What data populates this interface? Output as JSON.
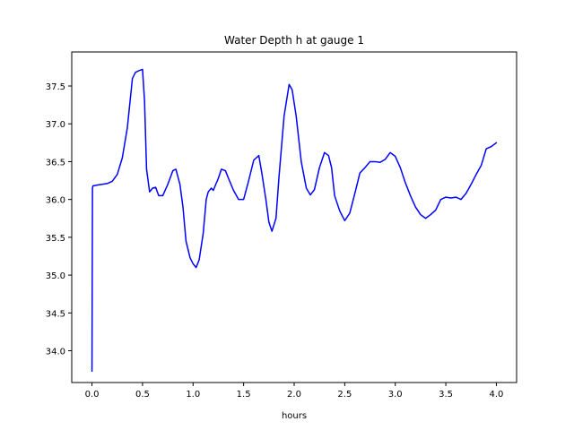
{
  "chart_data": {
    "type": "line",
    "title": "Water Depth h at gauge 1",
    "xlabel": "hours",
    "ylabel": "",
    "xlim": [
      -0.2,
      4.2
    ],
    "ylim": [
      33.58,
      37.95
    ],
    "xticks": [
      0.0,
      0.5,
      1.0,
      1.5,
      2.0,
      2.5,
      3.0,
      3.5,
      4.0
    ],
    "xtick_labels": [
      "0.0",
      "0.5",
      "1.0",
      "1.5",
      "2.0",
      "2.5",
      "3.0",
      "3.5",
      "4.0"
    ],
    "yticks": [
      34.0,
      34.5,
      35.0,
      35.5,
      36.0,
      36.5,
      37.0,
      37.5
    ],
    "ytick_labels": [
      "34.0",
      "34.5",
      "35.0",
      "35.5",
      "36.0",
      "36.5",
      "37.0",
      "37.5"
    ],
    "grid": false,
    "legend": "none",
    "series": [
      {
        "color": "#0000ff",
        "x": [
          0.0,
          0.005,
          0.01,
          0.05,
          0.1,
          0.15,
          0.2,
          0.25,
          0.3,
          0.35,
          0.4,
          0.43,
          0.46,
          0.5,
          0.52,
          0.54,
          0.57,
          0.6,
          0.63,
          0.66,
          0.7,
          0.75,
          0.8,
          0.83,
          0.87,
          0.9,
          0.93,
          0.97,
          1.0,
          1.03,
          1.06,
          1.1,
          1.13,
          1.15,
          1.18,
          1.2,
          1.25,
          1.28,
          1.32,
          1.35,
          1.4,
          1.45,
          1.5,
          1.55,
          1.6,
          1.65,
          1.68,
          1.72,
          1.75,
          1.78,
          1.82,
          1.85,
          1.9,
          1.95,
          1.98,
          2.02,
          2.07,
          2.12,
          2.16,
          2.2,
          2.25,
          2.3,
          2.34,
          2.37,
          2.4,
          2.45,
          2.5,
          2.55,
          2.6,
          2.65,
          2.7,
          2.75,
          2.8,
          2.85,
          2.9,
          2.95,
          3.0,
          3.05,
          3.1,
          3.15,
          3.2,
          3.25,
          3.3,
          3.35,
          3.4,
          3.45,
          3.5,
          3.55,
          3.6,
          3.65,
          3.7,
          3.75,
          3.8,
          3.85,
          3.9,
          3.95,
          4.0
        ],
        "y": [
          33.73,
          36.15,
          36.18,
          36.19,
          36.2,
          36.21,
          36.24,
          36.33,
          36.55,
          36.95,
          37.6,
          37.68,
          37.7,
          37.72,
          37.3,
          36.4,
          36.1,
          36.15,
          36.16,
          36.05,
          36.05,
          36.2,
          36.38,
          36.4,
          36.2,
          35.9,
          35.45,
          35.23,
          35.15,
          35.1,
          35.2,
          35.55,
          36.0,
          36.1,
          36.15,
          36.12,
          36.28,
          36.4,
          36.38,
          36.28,
          36.12,
          36.0,
          36.0,
          36.25,
          36.52,
          36.58,
          36.35,
          36.0,
          35.7,
          35.58,
          35.75,
          36.3,
          37.1,
          37.52,
          37.45,
          37.1,
          36.5,
          36.15,
          36.06,
          36.13,
          36.42,
          36.62,
          36.58,
          36.42,
          36.05,
          35.85,
          35.72,
          35.82,
          36.08,
          36.35,
          36.42,
          36.5,
          36.5,
          36.49,
          36.53,
          36.62,
          36.57,
          36.42,
          36.22,
          36.05,
          35.9,
          35.8,
          35.75,
          35.8,
          35.86,
          36.0,
          36.03,
          36.02,
          36.03,
          36.0,
          36.08,
          36.2,
          36.33,
          36.45,
          36.67,
          36.7,
          36.75
        ]
      }
    ]
  }
}
